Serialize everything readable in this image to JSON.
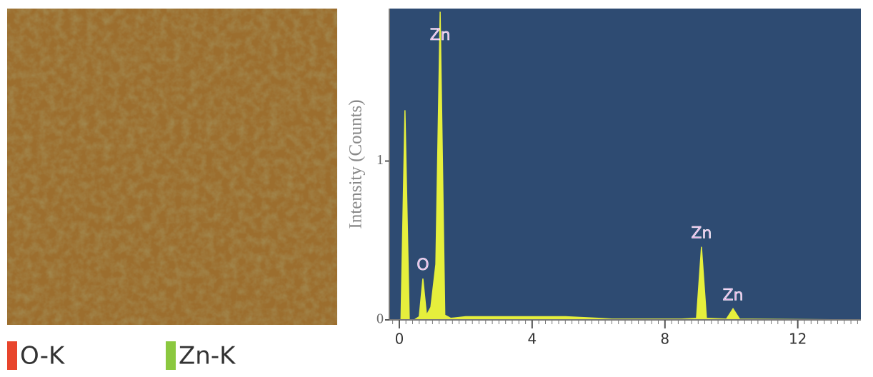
{
  "chart_data": {
    "type": "area",
    "ylabel": "Intensity (Counts)",
    "x": [
      -0.3,
      0.05,
      0.17,
      0.3,
      0.45,
      0.6,
      0.71,
      0.82,
      0.95,
      1.1,
      1.23,
      1.37,
      1.55,
      2.0,
      3.0,
      4.0,
      5.0,
      6.0,
      6.4,
      8.5,
      8.95,
      9.1,
      9.25,
      9.85,
      10.05,
      10.25,
      13.9
    ],
    "values": [
      0,
      0,
      1.32,
      0,
      0,
      0.02,
      0.26,
      0.03,
      0.08,
      0.35,
      1.94,
      0.03,
      0.01,
      0.02,
      0.02,
      0.02,
      0.02,
      0.01,
      0.005,
      0.005,
      0.01,
      0.46,
      0.01,
      0.005,
      0.07,
      0.005,
      0
    ],
    "color": "#e6ef3c",
    "background": "#2e4b72",
    "xlim": [
      -0.3,
      13.9
    ],
    "xticks": [
      0,
      4,
      8,
      12
    ],
    "ylim": [
      0,
      1.96
    ],
    "yticks": [
      0,
      1
    ],
    "annotations": [
      {
        "text": "Zn",
        "x": 1.23
      },
      {
        "text": "O",
        "x": 0.71
      },
      {
        "text": "Zn",
        "x": 9.1
      },
      {
        "text": "Zn",
        "x": 10.05
      }
    ],
    "annotation_color": "#e8b4e8"
  },
  "map_legend": [
    {
      "name": "O-K",
      "color": "#e8452c"
    },
    {
      "name": "Zn-K",
      "color": "#8bc83f"
    }
  ]
}
